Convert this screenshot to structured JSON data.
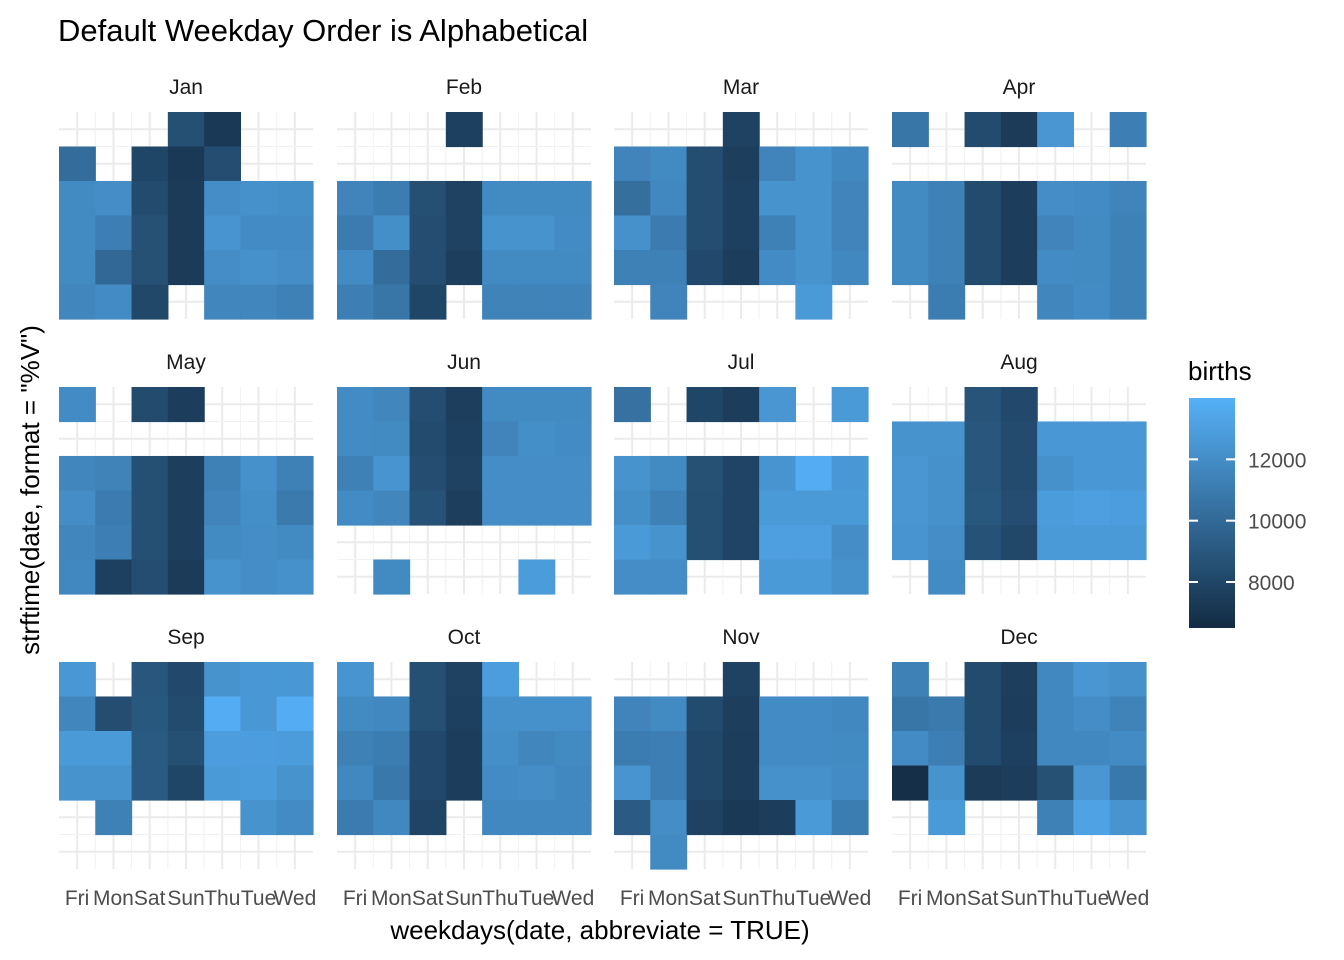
{
  "chart_data": {
    "type": "heatmap",
    "title": "Default Weekday Order is Alphabetical",
    "xlabel": "weekdays(date, abbreviate = TRUE)",
    "ylabel": "strftime(date, format = \"%V\")",
    "categories": [
      "Fri",
      "Mon",
      "Sat",
      "Sun",
      "Thu",
      "Tue",
      "Wed"
    ],
    "fill_name": "births",
    "legend": {
      "title": "births",
      "breaks": [
        8000,
        10000,
        12000
      ],
      "labels": [
        "8000",
        "10000",
        "12000"
      ],
      "range": [
        6500,
        14000
      ],
      "low_color": "#132B43",
      "high_color": "#56B1F7",
      "position": "right"
    },
    "panels": [
      {
        "label": "Jan",
        "rows": 6,
        "weeks": [
          [
            null,
            null,
            null,
            8500,
            7300,
            null,
            null
          ],
          [
            10200,
            null,
            8000,
            7300,
            8400,
            null,
            null
          ],
          [
            11800,
            12000,
            8300,
            7400,
            12000,
            12200,
            12100
          ],
          [
            11800,
            11200,
            8600,
            7400,
            12400,
            11900,
            11900
          ],
          [
            11800,
            9900,
            8600,
            7400,
            12000,
            12200,
            12000
          ],
          [
            11600,
            11900,
            8100,
            null,
            11600,
            11600,
            11300
          ]
        ]
      },
      {
        "label": "Feb",
        "rows": 6,
        "weeks": [
          [
            null,
            null,
            null,
            7700,
            null,
            null,
            null
          ],
          [
            null,
            null,
            null,
            null,
            null,
            null,
            null
          ],
          [
            11500,
            11100,
            8500,
            7800,
            11800,
            11800,
            11800
          ],
          [
            11000,
            12100,
            8400,
            7800,
            12300,
            12300,
            11900
          ],
          [
            11900,
            10200,
            8400,
            7600,
            11800,
            11800,
            11800
          ],
          [
            11200,
            10700,
            8000,
            null,
            11400,
            11400,
            11400
          ]
        ]
      },
      {
        "label": "Mar",
        "rows": 6,
        "weeks": [
          [
            null,
            null,
            null,
            7800,
            null,
            null,
            null
          ],
          [
            11500,
            11800,
            8400,
            7600,
            11500,
            12300,
            11700
          ],
          [
            10300,
            11700,
            8400,
            7700,
            12300,
            12300,
            11500
          ],
          [
            12200,
            11000,
            8400,
            7700,
            11300,
            12300,
            11500
          ],
          [
            11300,
            11300,
            8200,
            7500,
            11900,
            12300,
            11700
          ],
          [
            null,
            11500,
            null,
            null,
            null,
            12700,
            null
          ]
        ]
      },
      {
        "label": "Apr",
        "rows": 6,
        "weeks": [
          [
            10700,
            null,
            8300,
            7400,
            12500,
            null,
            11200
          ],
          [
            null,
            null,
            null,
            null,
            null,
            null,
            null
          ],
          [
            11800,
            11300,
            8300,
            7500,
            12000,
            11900,
            11500
          ],
          [
            11800,
            11300,
            8300,
            7500,
            11500,
            11800,
            11300
          ],
          [
            11800,
            11300,
            8300,
            7500,
            11900,
            11800,
            11300
          ],
          [
            null,
            11100,
            null,
            null,
            11600,
            11900,
            11300
          ]
        ]
      },
      {
        "label": "May",
        "rows": 6,
        "weeks": [
          [
            11900,
            null,
            8300,
            7500,
            null,
            null,
            null
          ],
          [
            null,
            null,
            null,
            null,
            null,
            null,
            null
          ],
          [
            11600,
            11400,
            8500,
            7600,
            11300,
            12200,
            11300
          ],
          [
            12000,
            11000,
            8500,
            7600,
            11500,
            12100,
            10900
          ],
          [
            11600,
            11200,
            8500,
            7600,
            11800,
            12000,
            11800
          ],
          [
            11700,
            7700,
            8400,
            7400,
            12300,
            12000,
            12200
          ]
        ]
      },
      {
        "label": "Jun",
        "rows": 6,
        "weeks": [
          [
            11900,
            11600,
            8400,
            7600,
            11800,
            11800,
            11800
          ],
          [
            11900,
            11800,
            8300,
            7700,
            11500,
            12100,
            11900
          ],
          [
            11300,
            12400,
            8400,
            7800,
            12000,
            12000,
            12000
          ],
          [
            11900,
            11600,
            8700,
            7600,
            12000,
            12000,
            12000
          ],
          [
            null,
            null,
            null,
            null,
            null,
            null,
            null
          ],
          [
            null,
            11800,
            null,
            null,
            null,
            12800,
            null
          ]
        ]
      },
      {
        "label": "Jul",
        "rows": 6,
        "weeks": [
          [
            10400,
            null,
            8000,
            7500,
            12500,
            null,
            12700
          ],
          [
            null,
            null,
            null,
            null,
            null,
            null,
            null
          ],
          [
            12300,
            11800,
            8600,
            7900,
            12400,
            13800,
            12600
          ],
          [
            12100,
            11300,
            8500,
            7900,
            12700,
            12700,
            12700
          ],
          [
            12700,
            12300,
            8500,
            7900,
            13000,
            13000,
            12000
          ],
          [
            12000,
            12000,
            null,
            null,
            12700,
            12700,
            12200
          ]
        ]
      },
      {
        "label": "Aug",
        "rows": 6,
        "weeks": [
          [
            null,
            null,
            8800,
            8200,
            null,
            null,
            null
          ],
          [
            12300,
            12300,
            8900,
            8300,
            12600,
            12600,
            12600
          ],
          [
            12500,
            12200,
            8900,
            8300,
            12200,
            12600,
            12600
          ],
          [
            12500,
            12200,
            9000,
            8400,
            12800,
            13000,
            12900
          ],
          [
            12400,
            12000,
            8700,
            8100,
            12700,
            12700,
            12700
          ],
          [
            null,
            11900,
            null,
            null,
            null,
            null,
            null
          ]
        ]
      },
      {
        "label": "Sep",
        "rows": 6,
        "weeks": [
          [
            12600,
            null,
            8900,
            8200,
            12300,
            12600,
            12600
          ],
          [
            11600,
            8400,
            9000,
            8300,
            13800,
            12600,
            13800
          ],
          [
            12700,
            12700,
            9100,
            8500,
            12900,
            12900,
            12800
          ],
          [
            12300,
            12300,
            9100,
            8000,
            12700,
            12800,
            12300
          ],
          [
            null,
            11300,
            null,
            null,
            null,
            12300,
            11900
          ],
          [
            null,
            null,
            null,
            null,
            null,
            null,
            null
          ]
        ]
      },
      {
        "label": "Oct",
        "rows": 6,
        "weeks": [
          [
            12400,
            null,
            8500,
            7800,
            12900,
            null,
            null
          ],
          [
            11800,
            11700,
            8500,
            7700,
            12200,
            12200,
            12200
          ],
          [
            11300,
            11100,
            8200,
            7500,
            12100,
            11600,
            11800
          ],
          [
            11700,
            10800,
            8200,
            7500,
            11900,
            12000,
            11700
          ],
          [
            11000,
            11700,
            7900,
            null,
            11700,
            11700,
            11700
          ],
          [
            null,
            null,
            null,
            null,
            null,
            null,
            null
          ]
        ]
      },
      {
        "label": "Nov",
        "rows": 6,
        "weeks": [
          [
            null,
            null,
            null,
            7800,
            null,
            null,
            null
          ],
          [
            11500,
            11800,
            8300,
            7600,
            11900,
            11900,
            11700
          ],
          [
            11100,
            11200,
            8100,
            7500,
            11900,
            11900,
            11800
          ],
          [
            12400,
            11200,
            8100,
            7500,
            12200,
            12200,
            11900
          ],
          [
            9200,
            12000,
            7800,
            7300,
            7500,
            12700,
            11100
          ],
          [
            null,
            11800,
            null,
            null,
            null,
            null,
            null
          ]
        ]
      },
      {
        "label": "Dec",
        "rows": 6,
        "weeks": [
          [
            11300,
            null,
            8300,
            7600,
            11700,
            12500,
            12200
          ],
          [
            10700,
            10900,
            8300,
            7500,
            11700,
            12000,
            11400
          ],
          [
            11900,
            11200,
            8300,
            7700,
            11700,
            11700,
            11900
          ],
          [
            6700,
            12300,
            7400,
            7500,
            8600,
            12500,
            10800
          ],
          [
            null,
            12700,
            null,
            null,
            11300,
            13200,
            12400
          ],
          [
            null,
            null,
            null,
            null,
            null,
            null,
            null
          ]
        ]
      }
    ]
  }
}
